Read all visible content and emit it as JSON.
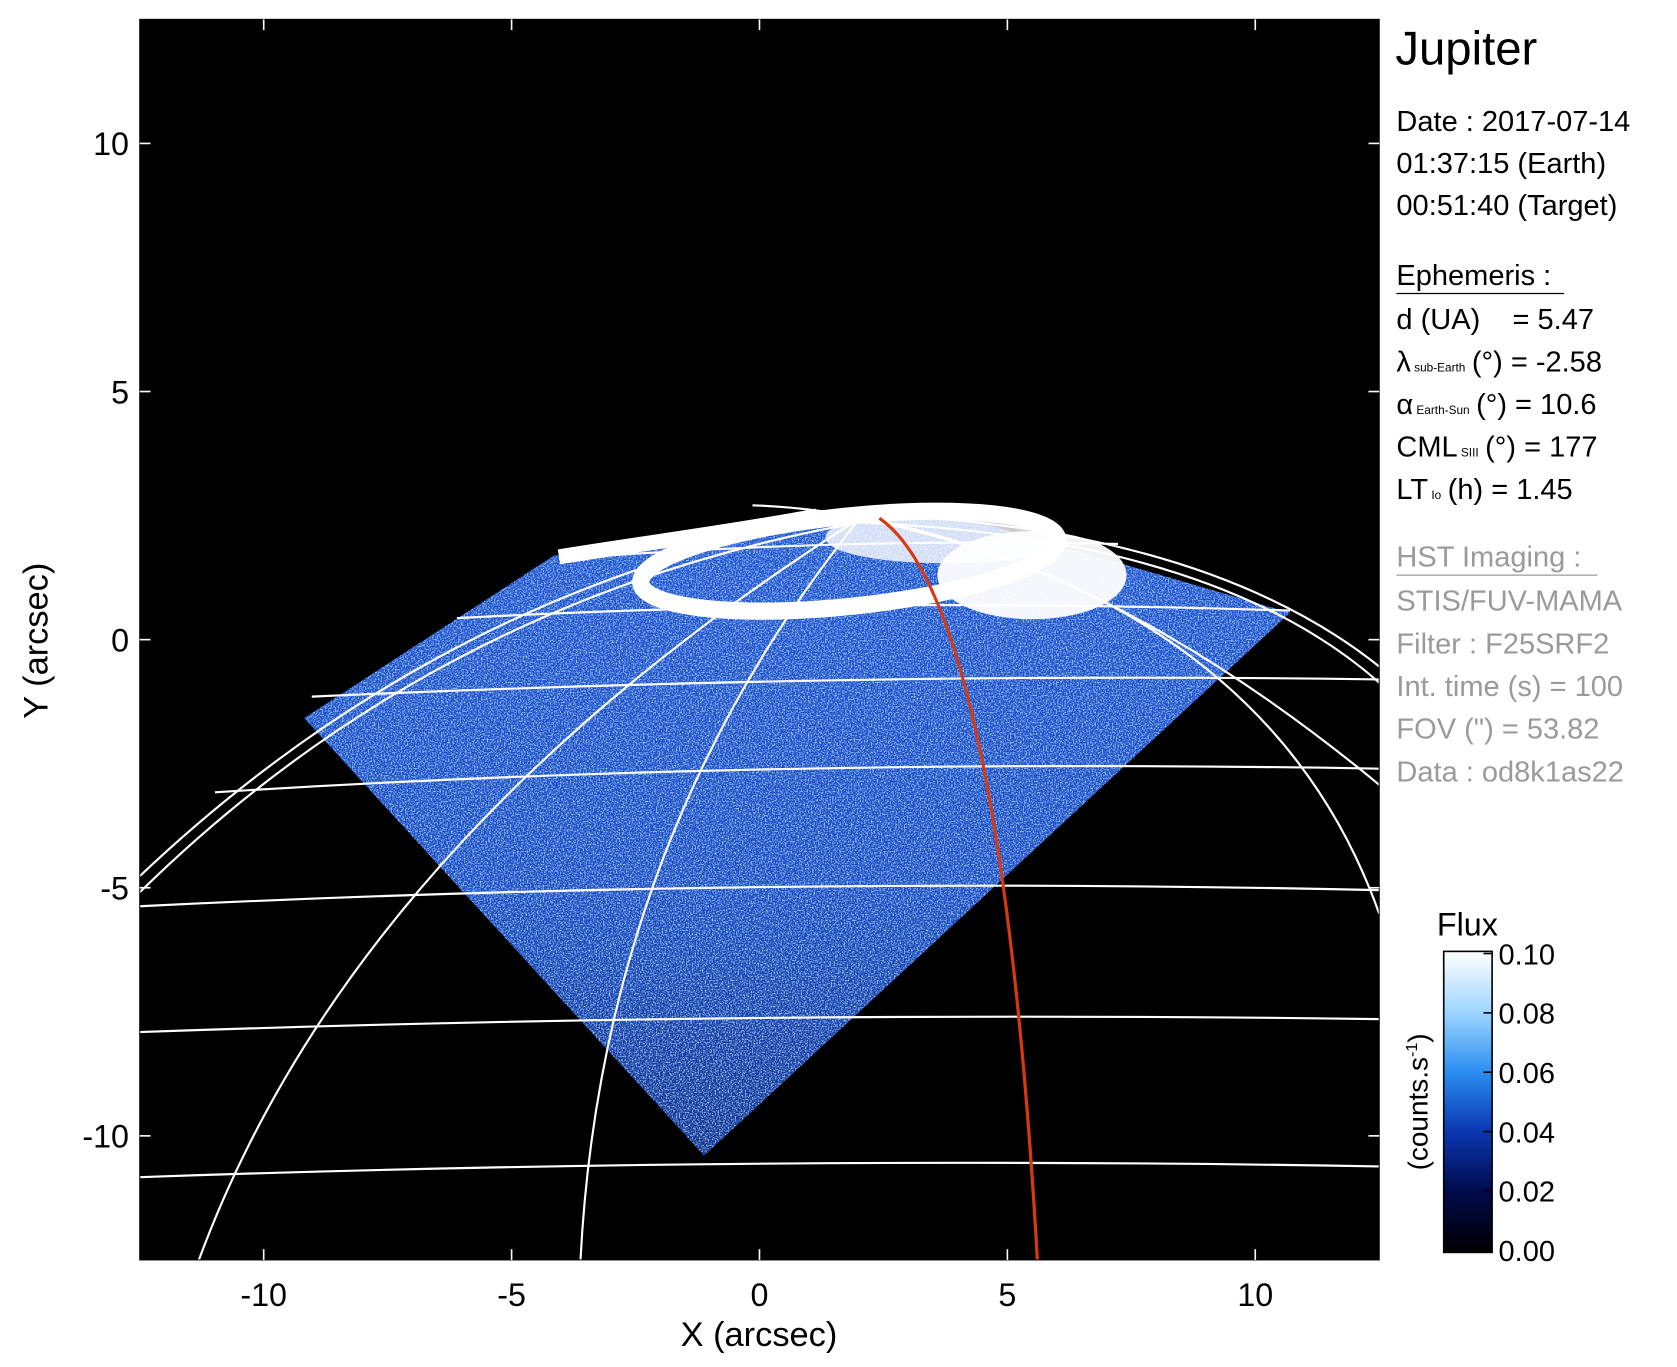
{
  "chart_data": {
    "type": "image",
    "title": "Jupiter",
    "xlabel": "X (arcsec)",
    "ylabel": "Y (arcsec)",
    "xlim": [
      -12.5,
      12.5
    ],
    "ylim": [
      -12.5,
      12.5
    ],
    "xticks": [
      -10,
      -5,
      0,
      5,
      10
    ],
    "yticks": [
      -10,
      -5,
      0,
      5,
      10
    ],
    "observation": [
      "Date : 2017-07-14",
      "01:37:15 (Earth)",
      "00:51:40 (Target)"
    ],
    "ephemeris_header": "Ephemeris :",
    "ephemeris": [
      {
        "main": "d (UA)",
        "rest": "= 5.47"
      },
      {
        "main": "λ",
        "sub": "sub-Earth",
        "rest": "(°) = -2.58"
      },
      {
        "main": "α",
        "sub": "Earth-Sun",
        "rest": "(°) = 10.6"
      },
      {
        "main": "CML",
        "sub": "SIII",
        "rest": "(°) = 177"
      },
      {
        "main": "LT",
        "sub": "Io",
        "rest": "(h) = 1.45"
      }
    ],
    "imaging_header": "HST Imaging :",
    "imaging": [
      "STIS/FUV-MAMA",
      "Filter : F25SRF2",
      "Int. time (s) = 100",
      "FOV (\") = 53.82",
      "Data : od8k1as22"
    ],
    "colorbar": {
      "label": "Flux",
      "unit": [
        "(counts.s",
        "-1",
        ")"
      ],
      "lim": [
        0,
        0.1
      ],
      "ticks": [
        {
          "value": 0,
          "label": "0.00"
        },
        {
          "value": 0.02,
          "label": "0.02"
        },
        {
          "value": 0.04,
          "label": "0.04"
        },
        {
          "value": 0.06,
          "label": "0.06"
        },
        {
          "value": 0.08,
          "label": "0.08"
        },
        {
          "value": 0.1,
          "label": "0.10"
        }
      ],
      "colormap": [
        "#000000",
        "#000a4a",
        "#0a36b0",
        "#2b8ef0",
        "#9fd6ff",
        "#ffffff"
      ]
    }
  }
}
